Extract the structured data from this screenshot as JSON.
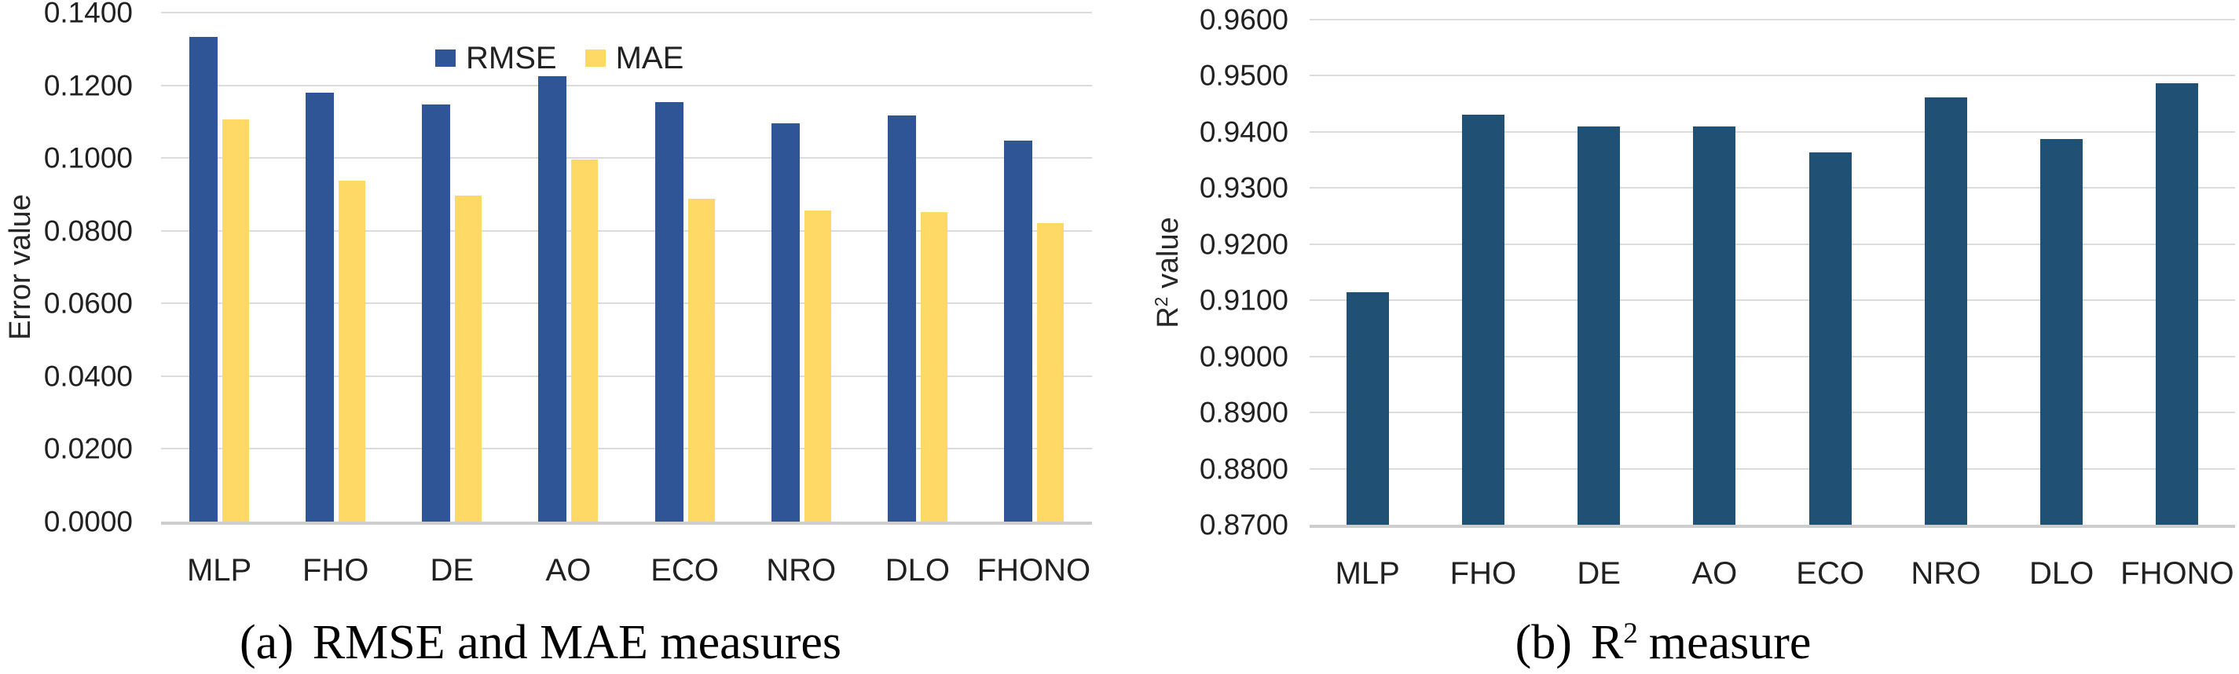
{
  "colors": {
    "rmse_bar": "#2F5596",
    "mae_bar": "#FFD965",
    "r2_bar": "#205073",
    "gridline": "#DBDBDB",
    "axis_line": "#CDCDCD",
    "text": "#212121"
  },
  "panel_a": {
    "ylabel": "Error value",
    "ytick_labels": [
      "0.0000",
      "0.0200",
      "0.0400",
      "0.0600",
      "0.0800",
      "0.1000",
      "0.1200",
      "0.1400"
    ],
    "legend": [
      {
        "label": "RMSE",
        "color_key": "rmse_bar"
      },
      {
        "label": "MAE",
        "color_key": "mae_bar"
      }
    ],
    "caption_index": "(a)",
    "caption_text": "RMSE and MAE measures"
  },
  "panel_b": {
    "ylabel_base": "R",
    "ylabel_sup": "2",
    "ylabel_rest": " value",
    "ytick_labels": [
      "0.8700",
      "0.8800",
      "0.8900",
      "0.9000",
      "0.9100",
      "0.9200",
      "0.9300",
      "0.9400",
      "0.9500",
      "0.9600"
    ],
    "caption_index": "(b)",
    "caption_base": "R",
    "caption_sup": "2",
    "caption_text": "measure"
  },
  "chart_data": [
    {
      "type": "bar",
      "title": "(a) RMSE and MAE measures",
      "categories": [
        "MLP",
        "FHO",
        "DE",
        "AO",
        "ECO",
        "NRO",
        "DLO",
        "FHONO"
      ],
      "series": [
        {
          "name": "RMSE",
          "color_key": "rmse_bar",
          "values": [
            0.1332,
            0.118,
            0.1148,
            0.1226,
            0.1153,
            0.1096,
            0.1118,
            0.1048
          ]
        },
        {
          "name": "MAE",
          "color_key": "mae_bar",
          "values": [
            0.1107,
            0.0937,
            0.0897,
            0.0996,
            0.0889,
            0.0856,
            0.0851,
            0.082
          ]
        }
      ],
      "xlabel": "",
      "ylabel": "Error value",
      "ylim": [
        0.0,
        0.14
      ],
      "ytick_step": 0.02,
      "grid": true,
      "legend_position": "top-center"
    },
    {
      "type": "bar",
      "title": "(b) R2 measure",
      "categories": [
        "MLP",
        "FHO",
        "DE",
        "AO",
        "ECO",
        "NRO",
        "DLO",
        "FHONO"
      ],
      "series": [
        {
          "name": "R2",
          "color_key": "r2_bar",
          "values": [
            0.9114,
            0.9431,
            0.9409,
            0.9409,
            0.9364,
            0.9462,
            0.9387,
            0.9486
          ]
        }
      ],
      "xlabel": "",
      "ylabel": "R2 value",
      "ylim": [
        0.87,
        0.96
      ],
      "ytick_step": 0.01,
      "grid": true,
      "legend_position": "none"
    }
  ]
}
